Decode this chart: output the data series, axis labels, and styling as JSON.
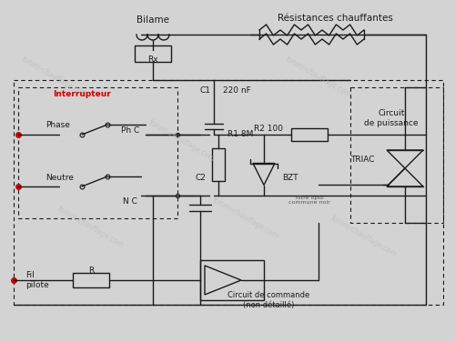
{
  "bg_color": "#d3d3d3",
  "line_color": "#1a1a1a",
  "red_color": "#cc0000",
  "title_bilame": "Bilame",
  "title_resistances": "Résistances chauffantes",
  "label_interrupteur": "Interrupteur",
  "label_phase": "Phase",
  "label_neutre": "Neutre",
  "label_phc": "Ph C",
  "label_nc": "N C",
  "label_rx": "Rx",
  "label_c1": "C1",
  "label_220nf": "220 nF",
  "label_r1": "R1 8M",
  "label_r2": "R2 100",
  "label_c2": "C2",
  "label_bzt": "BZT",
  "label_triac": "TRIAC",
  "label_circuit_puissance": "Circuit\nde puissance",
  "label_r": "R",
  "label_fil_pilote": "Fil\npilote",
  "label_circuit_commande": "Circuit de commande\n(non détaillé)",
  "label_filtre": "filtre opto\ncommune noir",
  "watermark": "forum-chauffage.com"
}
